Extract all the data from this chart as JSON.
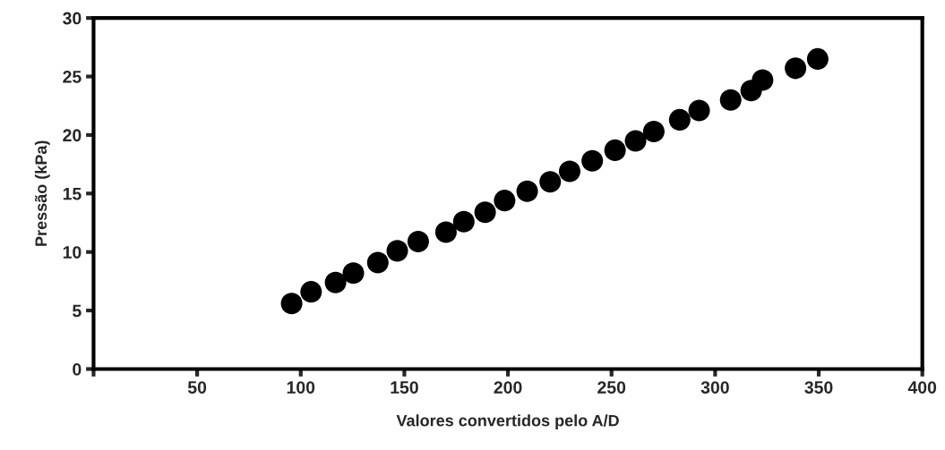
{
  "chart_data": {
    "type": "scatter",
    "xlabel": "Valores convertidos pelo A/D",
    "ylabel": "Pressão (kPa)",
    "x": [
      95.6,
      105,
      116.8,
      125.4,
      137.2,
      146.6,
      156.7,
      170.1,
      178.7,
      189,
      198.4,
      209.3,
      220.4,
      229.8,
      240.7,
      251.7,
      261.6,
      270.4,
      282.9,
      292.3,
      307.5,
      317.4,
      322.9,
      338.8,
      349.5
    ],
    "series": [
      {
        "color": "#000000",
        "values": [
          5.6,
          6.6,
          7.4,
          8.2,
          9.1,
          10.1,
          10.9,
          11.7,
          12.6,
          13.4,
          14.4,
          15.2,
          16.0,
          16.9,
          17.8,
          18.7,
          19.5,
          20.3,
          21.3,
          22.1,
          23.0,
          23.8,
          24.7,
          25.7,
          26.5
        ]
      }
    ],
    "xlim": [
      0,
      400
    ],
    "ylim": [
      0,
      30
    ],
    "xticks": [
      {
        "value": 0,
        "label": null
      },
      50,
      100,
      150,
      200,
      250,
      300,
      350,
      400
    ],
    "yticks": [
      0,
      5,
      10,
      15,
      20,
      25,
      30
    ],
    "marker": "circle",
    "grid": false
  }
}
